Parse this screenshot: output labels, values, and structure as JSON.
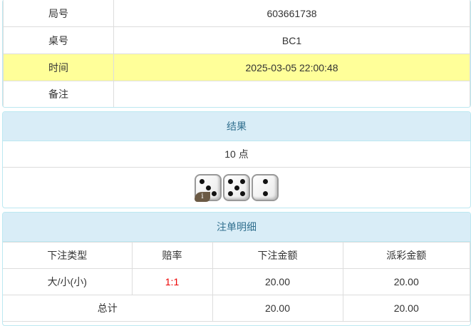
{
  "info": {
    "rows": [
      {
        "label": "局号",
        "value": "603661738"
      },
      {
        "label": "桌号",
        "value": "BC1"
      },
      {
        "label": "时间",
        "value": "2025-03-05 22:00:48"
      },
      {
        "label": "备注",
        "value": ""
      }
    ]
  },
  "result": {
    "title": "结果",
    "points": "10 点",
    "dice": [
      3,
      5,
      2
    ],
    "info_icon": "i"
  },
  "bets": {
    "title": "注单明细",
    "headers": [
      "下注类型",
      "赔率",
      "下注金额",
      "派彩金额"
    ],
    "rows": [
      {
        "type": "大/小(小)",
        "odds": "1:1",
        "amount": "20.00",
        "payout": "20.00"
      }
    ],
    "total": {
      "label": "总计",
      "amount": "20.00",
      "payout": "20.00"
    }
  },
  "colors": {
    "highlight": "#ffff99",
    "header": "#d9edf7",
    "odds": "#ee0000"
  }
}
